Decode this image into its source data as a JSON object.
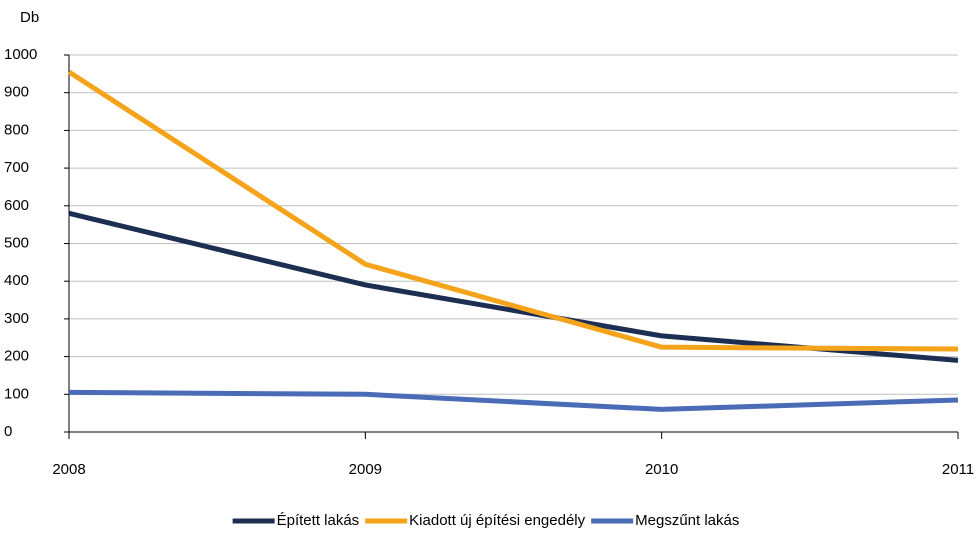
{
  "chart_data": {
    "type": "line",
    "y_label": "Db",
    "x": [
      2008,
      2009,
      2010,
      2011
    ],
    "xlim": [
      2008,
      2011
    ],
    "xticks": [
      2008,
      2009,
      2010,
      2011
    ],
    "ylim": [
      0,
      1000
    ],
    "yticks": [
      0,
      100,
      200,
      300,
      400,
      500,
      600,
      700,
      800,
      900,
      1000
    ],
    "grid": true,
    "legend": "bottom",
    "series": [
      {
        "name": "Épített lakás",
        "color": "#1c2e52",
        "values": [
          580,
          390,
          255,
          190
        ]
      },
      {
        "name": "Kiadott új építési engedély",
        "color": "#f5a31a",
        "values": [
          955,
          445,
          225,
          220
        ]
      },
      {
        "name": "Megszűnt lakás",
        "color": "#4a6bb5",
        "values": [
          105,
          100,
          60,
          85
        ]
      }
    ]
  }
}
